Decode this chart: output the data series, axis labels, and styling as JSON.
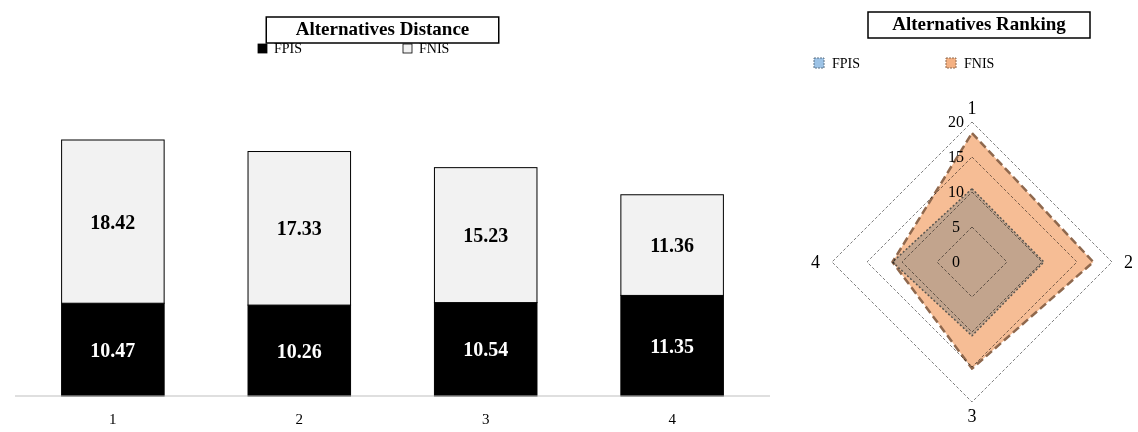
{
  "chart_data": [
    {
      "type": "bar",
      "title": "Alternatives Distance",
      "categories": [
        "1",
        "2",
        "3",
        "4"
      ],
      "stacked": true,
      "data_labels": true,
      "legend": "top",
      "series": [
        {
          "name": "FPIS",
          "color": "#000000",
          "values": [
            10.47,
            10.26,
            10.54,
            11.35
          ]
        },
        {
          "name": "FNIS",
          "color": "#f2f2f2",
          "values": [
            18.42,
            17.33,
            15.23,
            11.36
          ]
        }
      ]
    },
    {
      "type": "radar",
      "title": "Alternatives Ranking",
      "categories": [
        "1",
        "2",
        "3",
        "4"
      ],
      "ylim": [
        0,
        20
      ],
      "yticks": [
        0,
        5,
        10,
        15,
        20
      ],
      "grid": true,
      "legend": "top left",
      "series": [
        {
          "name": "FPIS",
          "color": "#9dc3e6",
          "line_style": "dotted",
          "values": [
            10.47,
            10.26,
            10.54,
            11.35
          ]
        },
        {
          "name": "FNIS",
          "color": "#f4b183",
          "line_style": "dashed",
          "values": [
            18.42,
            17.33,
            15.23,
            11.36
          ]
        }
      ]
    }
  ]
}
